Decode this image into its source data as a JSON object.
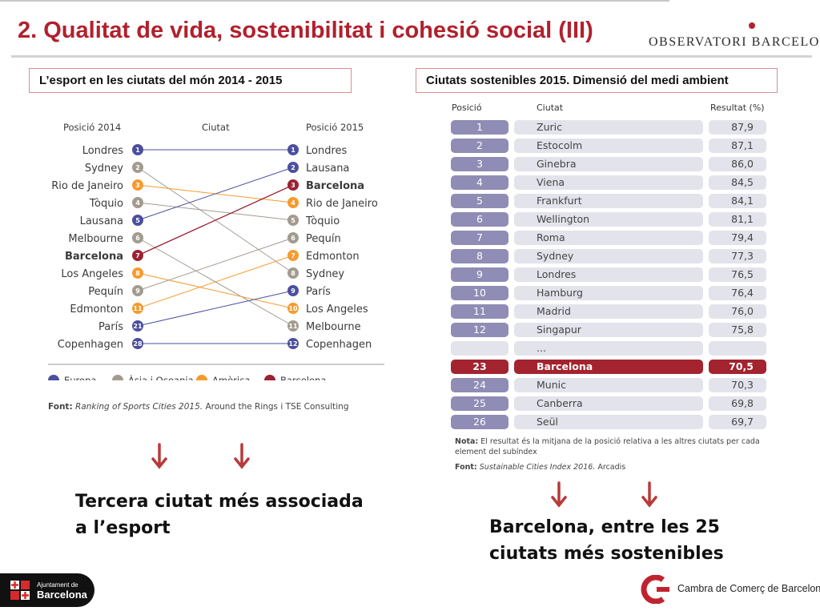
{
  "header": {
    "title": "2. Qualitat de vida, sostenibilitat i cohesió social (III)",
    "logo_text": "OBSERVATORI BARCELONA"
  },
  "left_panel": {
    "box_title": "L’esport en les ciutats del món 2014 - 2015",
    "col_2014": "Posició 2014",
    "col_city": "Ciutat",
    "col_2015": "Posició 2015",
    "colors": {
      "europa": "#4b4f9e",
      "asia": "#a39b8f",
      "america": "#f59b2e",
      "barcelona": "#9b2232"
    },
    "left_list": [
      {
        "rank": "1",
        "city": "Londres",
        "group": "europa"
      },
      {
        "rank": "2",
        "city": "Sydney",
        "group": "asia"
      },
      {
        "rank": "3",
        "city": "Rio de Janeiro",
        "group": "america"
      },
      {
        "rank": "4",
        "city": "Tòquio",
        "group": "asia"
      },
      {
        "rank": "5",
        "city": "Lausana",
        "group": "europa"
      },
      {
        "rank": "6",
        "city": "Melbourne",
        "group": "asia"
      },
      {
        "rank": "7",
        "city": "Barcelona",
        "group": "barcelona"
      },
      {
        "rank": "8",
        "city": "Los Angeles",
        "group": "america"
      },
      {
        "rank": "9",
        "city": "Pequín",
        "group": "asia"
      },
      {
        "rank": "11",
        "city": "Edmonton",
        "group": "america"
      },
      {
        "rank": "21",
        "city": "París",
        "group": "europa"
      },
      {
        "rank": "28",
        "city": "Copenhagen",
        "group": "europa"
      }
    ],
    "right_list": [
      {
        "rank": "1",
        "city": "Londres",
        "group": "europa"
      },
      {
        "rank": "2",
        "city": "Lausana",
        "group": "europa"
      },
      {
        "rank": "3",
        "city": "Barcelona",
        "group": "barcelona"
      },
      {
        "rank": "4",
        "city": "Rio de Janeiro",
        "group": "america"
      },
      {
        "rank": "5",
        "city": "Tòquio",
        "group": "asia"
      },
      {
        "rank": "6",
        "city": "Pequín",
        "group": "asia"
      },
      {
        "rank": "7",
        "city": "Edmonton",
        "group": "america"
      },
      {
        "rank": "8",
        "city": "Sydney",
        "group": "asia"
      },
      {
        "rank": "9",
        "city": "París",
        "group": "europa"
      },
      {
        "rank": "10",
        "city": "Los Angeles",
        "group": "america"
      },
      {
        "rank": "11",
        "city": "Melbourne",
        "group": "asia"
      },
      {
        "rank": "12",
        "city": "Copenhagen",
        "group": "europa"
      }
    ],
    "links": [
      [
        0,
        0
      ],
      [
        1,
        7
      ],
      [
        2,
        3
      ],
      [
        3,
        4
      ],
      [
        4,
        1
      ],
      [
        5,
        10
      ],
      [
        6,
        2
      ],
      [
        7,
        9
      ],
      [
        8,
        5
      ],
      [
        9,
        6
      ],
      [
        10,
        8
      ],
      [
        11,
        11
      ]
    ],
    "legend": [
      {
        "label": "Europa",
        "group": "europa"
      },
      {
        "label": "Àsia i Oceania",
        "group": "asia"
      },
      {
        "label": "Amèrica",
        "group": "america"
      },
      {
        "label": "Barcelona",
        "group": "barcelona"
      }
    ],
    "source_label": "Font:",
    "source_italic": "Ranking of Sports Cities 2015.",
    "source_rest": "Around the Rings i TSE Consulting",
    "caption_line1": "Tercera ciutat més associada",
    "caption_line2": "a l’esport"
  },
  "right_panel": {
    "box_title": "Ciutats sostenibles 2015. Dimensió del medi ambient",
    "col_pos": "Posició",
    "col_city": "Ciutat",
    "col_result": "Resultat (%)",
    "rows": [
      {
        "pos": "1",
        "city": "Zuric",
        "result": "87,9"
      },
      {
        "pos": "2",
        "city": "Estocolm",
        "result": "87,1"
      },
      {
        "pos": "3",
        "city": "Ginebra",
        "result": "86,0"
      },
      {
        "pos": "4",
        "city": "Viena",
        "result": "84,5"
      },
      {
        "pos": "5",
        "city": "Frankfurt",
        "result": "84,1"
      },
      {
        "pos": "6",
        "city": "Wellington",
        "result": "81,1"
      },
      {
        "pos": "7",
        "city": "Roma",
        "result": "79,4"
      },
      {
        "pos": "8",
        "city": "Sydney",
        "result": "77,3"
      },
      {
        "pos": "9",
        "city": "Londres",
        "result": "76,5"
      },
      {
        "pos": "10",
        "city": "Hamburg",
        "result": "76,4"
      },
      {
        "pos": "11",
        "city": "Madrid",
        "result": "76,0"
      },
      {
        "pos": "12",
        "city": "Singapur",
        "result": "75,8"
      },
      {
        "pos": "",
        "city": "...",
        "result": ""
      },
      {
        "pos": "23",
        "city": "Barcelona",
        "result": "70,5"
      },
      {
        "pos": "24",
        "city": "Munic",
        "result": "70,3"
      },
      {
        "pos": "25",
        "city": "Canberra",
        "result": "69,8"
      },
      {
        "pos": "26",
        "city": "Seül",
        "result": "69,7"
      }
    ],
    "note_label": "Nota:",
    "note_text": "El resultat és la mitjana de la posició relativa a les altres ciutats per cada element del subíndex",
    "source_label": "Font:",
    "source_italic": "Sustainable Cities Index 2016.",
    "source_rest": "Arcadis",
    "caption_line1": "Barcelona, entre les 25",
    "caption_line2": "ciutats més sostenibles"
  },
  "footer": {
    "ajuntament_line1": "Ajuntament de",
    "ajuntament_line2": "Barcelona",
    "cambra": "Cambra de Comerç de Barcelona"
  }
}
